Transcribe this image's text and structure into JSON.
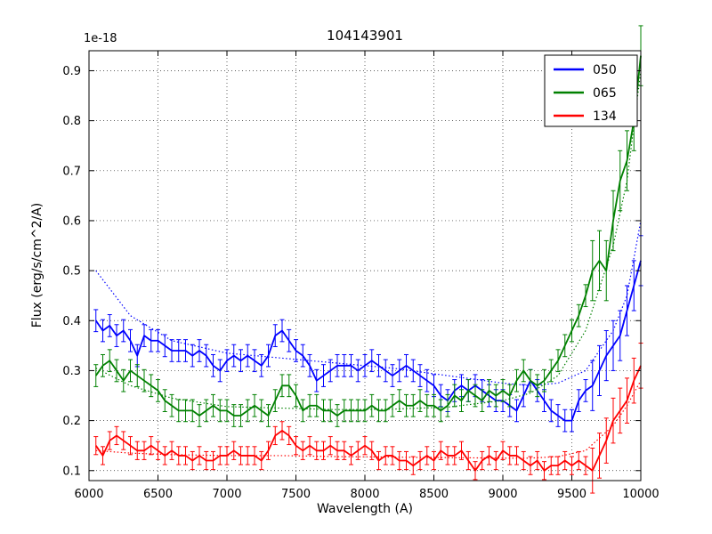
{
  "figure": {
    "title": "104143901",
    "offset_label": "1e-18",
    "xlabel": "Wavelength (A)",
    "ylabel": "Flux (erg/s/cm^2/A)"
  },
  "chart_data": {
    "type": "line",
    "title": "104143901",
    "xlabel": "Wavelength (A)",
    "ylabel": "Flux (erg/s/cm^2/A)",
    "y_scale_factor": "1e-18",
    "xlim": [
      6000,
      10000
    ],
    "ylim": [
      0.08,
      0.94
    ],
    "xticks": [
      6000,
      6500,
      7000,
      7500,
      8000,
      8500,
      9000,
      9500,
      10000
    ],
    "yticks": [
      0.1,
      0.2,
      0.3,
      0.4,
      0.5,
      0.6,
      0.7,
      0.8,
      0.9
    ],
    "grid": true,
    "grid_style": "dotted",
    "legend_position": "upper right",
    "x_start": 6050,
    "x_step": 50,
    "series": [
      {
        "name": "050",
        "color": "#0000ff",
        "error": 0.022,
        "error_tail": 0.05,
        "tail_points": 8,
        "values": [
          0.4,
          0.38,
          0.39,
          0.37,
          0.38,
          0.36,
          0.33,
          0.37,
          0.36,
          0.36,
          0.35,
          0.34,
          0.34,
          0.34,
          0.33,
          0.34,
          0.33,
          0.31,
          0.3,
          0.32,
          0.33,
          0.32,
          0.33,
          0.32,
          0.31,
          0.33,
          0.37,
          0.38,
          0.36,
          0.34,
          0.33,
          0.31,
          0.28,
          0.29,
          0.3,
          0.31,
          0.31,
          0.31,
          0.3,
          0.31,
          0.32,
          0.31,
          0.3,
          0.29,
          0.3,
          0.31,
          0.3,
          0.29,
          0.28,
          0.27,
          0.25,
          0.24,
          0.26,
          0.27,
          0.26,
          0.27,
          0.26,
          0.25,
          0.24,
          0.24,
          0.23,
          0.22,
          0.25,
          0.28,
          0.26,
          0.24,
          0.22,
          0.21,
          0.2,
          0.2,
          0.24,
          0.26,
          0.27,
          0.3,
          0.33,
          0.35,
          0.37,
          0.42,
          0.47,
          0.52
        ],
        "fit": {
          "x": [
            6050,
            6300,
            6600,
            7000,
            7400,
            7800,
            8200,
            8600,
            9000,
            9200,
            9400,
            9600,
            9800,
            9900,
            10000
          ],
          "y": [
            0.5,
            0.41,
            0.36,
            0.335,
            0.325,
            0.315,
            0.305,
            0.29,
            0.275,
            0.27,
            0.275,
            0.3,
            0.38,
            0.45,
            0.6
          ]
        }
      },
      {
        "name": "065",
        "color": "#008000",
        "error": 0.022,
        "error_tail": 0.06,
        "tail_points": 8,
        "values": [
          0.29,
          0.31,
          0.32,
          0.3,
          0.28,
          0.3,
          0.29,
          0.28,
          0.27,
          0.26,
          0.24,
          0.23,
          0.22,
          0.22,
          0.22,
          0.21,
          0.22,
          0.23,
          0.22,
          0.22,
          0.21,
          0.21,
          0.22,
          0.23,
          0.22,
          0.21,
          0.24,
          0.27,
          0.27,
          0.25,
          0.22,
          0.23,
          0.23,
          0.22,
          0.22,
          0.21,
          0.22,
          0.22,
          0.22,
          0.22,
          0.23,
          0.22,
          0.22,
          0.23,
          0.24,
          0.23,
          0.23,
          0.24,
          0.23,
          0.23,
          0.22,
          0.23,
          0.25,
          0.24,
          0.26,
          0.25,
          0.24,
          0.26,
          0.25,
          0.26,
          0.25,
          0.28,
          0.3,
          0.28,
          0.27,
          0.28,
          0.3,
          0.32,
          0.35,
          0.38,
          0.41,
          0.45,
          0.5,
          0.52,
          0.5,
          0.6,
          0.68,
          0.72,
          0.8,
          0.93
        ],
        "fit": {
          "x": [
            6050,
            6300,
            6600,
            7000,
            7400,
            7800,
            8200,
            8600,
            9000,
            9200,
            9400,
            9600,
            9800,
            9900,
            10000
          ],
          "y": [
            0.305,
            0.27,
            0.245,
            0.228,
            0.225,
            0.222,
            0.223,
            0.227,
            0.24,
            0.255,
            0.29,
            0.38,
            0.55,
            0.68,
            0.9
          ]
        }
      },
      {
        "name": "134",
        "color": "#ff0000",
        "error": 0.018,
        "error_tail": 0.045,
        "tail_points": 8,
        "values": [
          0.15,
          0.13,
          0.16,
          0.17,
          0.16,
          0.15,
          0.14,
          0.14,
          0.15,
          0.14,
          0.13,
          0.14,
          0.13,
          0.13,
          0.12,
          0.13,
          0.12,
          0.12,
          0.13,
          0.13,
          0.14,
          0.13,
          0.13,
          0.13,
          0.12,
          0.14,
          0.17,
          0.18,
          0.17,
          0.15,
          0.14,
          0.15,
          0.14,
          0.14,
          0.15,
          0.14,
          0.14,
          0.13,
          0.14,
          0.15,
          0.14,
          0.12,
          0.13,
          0.13,
          0.12,
          0.12,
          0.11,
          0.12,
          0.13,
          0.12,
          0.14,
          0.13,
          0.13,
          0.14,
          0.12,
          0.1,
          0.12,
          0.13,
          0.12,
          0.14,
          0.13,
          0.13,
          0.12,
          0.11,
          0.12,
          0.1,
          0.11,
          0.11,
          0.12,
          0.11,
          0.12,
          0.11,
          0.1,
          0.13,
          0.16,
          0.2,
          0.22,
          0.24,
          0.28,
          0.31
        ],
        "fit": {
          "x": [
            6050,
            6300,
            6600,
            7000,
            7400,
            7800,
            8200,
            8600,
            9000,
            9200,
            9400,
            9600,
            9800,
            9900,
            10000
          ],
          "y": [
            0.14,
            0.135,
            0.132,
            0.13,
            0.13,
            0.128,
            0.127,
            0.126,
            0.125,
            0.125,
            0.128,
            0.14,
            0.19,
            0.23,
            0.28
          ]
        }
      }
    ]
  }
}
